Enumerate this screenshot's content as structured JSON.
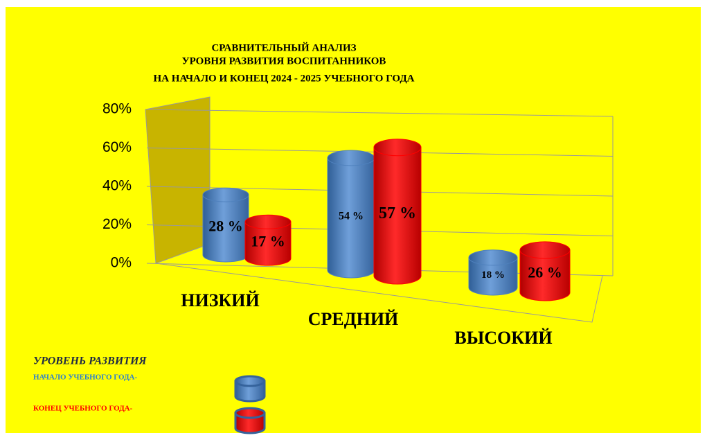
{
  "chart_data": {
    "type": "cylinder",
    "title": [
      "СРАВНИТЕЛЬНЫЙ АНАЛИЗ",
      "УРОВНЯ РАЗВИТИЯ ВОСПИТАННИКОВ",
      "НА НАЧАЛО И КОНЕЦ 2024 - 2025 УЧЕБНОГО ГОДА"
    ],
    "categories": [
      "НИЗКИЙ",
      "СРЕДНИЙ",
      "ВЫСОКИЙ"
    ],
    "legend_title": "УРОВЕНЬ РАЗВИТИЯ",
    "series": [
      {
        "name": "НАЧАЛО УЧЕБНОГО ГОДА-",
        "color": "#4f81bd",
        "values": [
          28,
          54,
          18
        ],
        "value_labels": [
          "28 %",
          "54 %",
          "18 %"
        ]
      },
      {
        "name": "КОНЕЦ УЧЕБНОГО ГОДА-",
        "color": "#ff0000",
        "values": [
          17,
          57,
          26
        ],
        "value_labels": [
          "17 %",
          "57 %",
          "26 %"
        ]
      }
    ],
    "ylim": [
      0,
      80
    ],
    "yticks": [
      {
        "value": 0,
        "label": "0%"
      },
      {
        "value": 20,
        "label": "20%"
      },
      {
        "value": 40,
        "label": "40%"
      },
      {
        "value": 60,
        "label": "60%"
      },
      {
        "value": 80,
        "label": "80%"
      }
    ],
    "grid": true,
    "legend": "bottom-left"
  }
}
